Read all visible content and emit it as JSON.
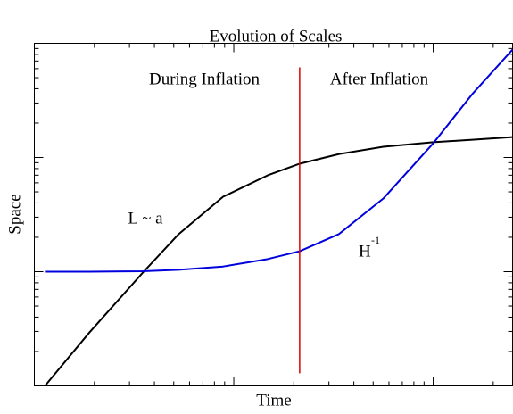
{
  "chart_data": {
    "type": "line",
    "title": "Evolution of Scales",
    "xlabel": "Time",
    "ylabel": "Space",
    "xscale": "log",
    "yscale": "log",
    "xlim": [
      1,
      250
    ],
    "ylim": [
      1,
      1000
    ],
    "xticks": [
      1,
      2,
      3,
      4,
      5,
      6,
      7,
      8,
      9,
      10,
      20,
      30,
      40,
      50,
      60,
      70,
      80,
      90,
      100,
      200
    ],
    "yticks": [
      1,
      2,
      3,
      4,
      5,
      6,
      7,
      8,
      9,
      10,
      20,
      30,
      40,
      50,
      60,
      70,
      80,
      90,
      100,
      200,
      300,
      400,
      500,
      600,
      700,
      800,
      900,
      1000
    ],
    "x": [
      1.13,
      1.89,
      3.5,
      5.29,
      8.84,
      14.8,
      21.4,
      33.6,
      56.2,
      100,
      157,
      250
    ],
    "series": [
      {
        "color": "#000000",
        "values": [
          1.0,
          2.94,
          9.82,
          21.3,
          45.3,
          69.8,
          88.2,
          107,
          124,
          136,
          143,
          151
        ]
      },
      {
        "color": "#0000dd",
        "values": [
          10.0,
          10.0,
          10.1,
          10.4,
          11.1,
          12.9,
          15.1,
          21.3,
          43.7,
          133,
          359,
          881
        ]
      }
    ],
    "vline": {
      "color": "#e00000",
      "x": [
        21.4,
        21.4
      ],
      "y": [
        1.29,
        615
      ]
    },
    "annotations": [
      {
        "text": "During Inflation"
      },
      {
        "text": "After Inflation"
      },
      {
        "text": "L ~ a"
      },
      {
        "text": "H",
        "sup": "-1"
      }
    ]
  }
}
